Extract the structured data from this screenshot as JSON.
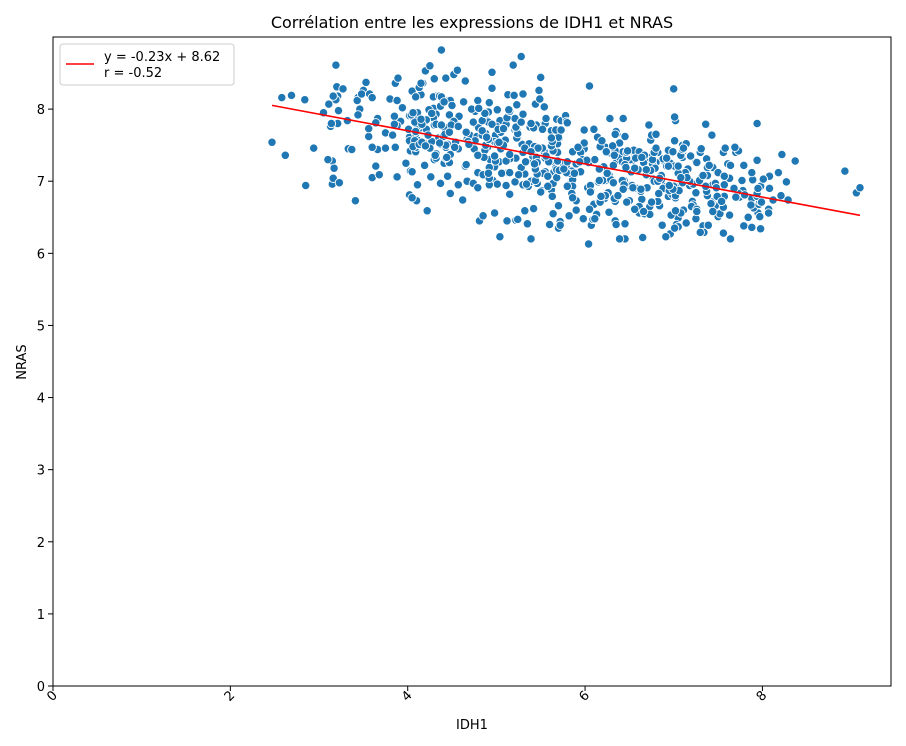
{
  "chart_data": {
    "type": "scatter",
    "title": "Corrélation entre les expressions de IDH1 et NRAS",
    "xlabel": "IDH1",
    "ylabel": "NRAS",
    "xlim": [
      0,
      9.45
    ],
    "ylim": [
      0,
      9.0
    ],
    "xticks": [
      0,
      2,
      4,
      6,
      8
    ],
    "yticks": [
      0,
      1,
      2,
      3,
      4,
      5,
      6,
      7,
      8
    ],
    "xtick_rotation": 45,
    "grid": false,
    "legend": {
      "placement": "top-left",
      "entries": [
        "y = -0.23x + 8.62",
        "r = -0.52"
      ]
    },
    "regression": {
      "slope": -0.23,
      "intercept": 8.62,
      "x_range": [
        2.47,
        9.1
      ],
      "color": "#ff0000",
      "label": "y = -0.23x + 8.62",
      "r_label": "r = -0.52"
    },
    "marker_color": "#1f77b4",
    "point_count": 700,
    "points": [
      [
        2.47,
        7.54
      ],
      [
        2.58,
        8.16
      ],
      [
        2.62,
        7.36
      ],
      [
        2.69,
        8.19
      ],
      [
        2.84,
        8.13
      ],
      [
        2.85,
        6.94
      ],
      [
        2.94,
        7.46
      ],
      [
        3.05,
        7.95
      ],
      [
        3.13,
        7.76
      ],
      [
        3.15,
        7.28
      ],
      [
        3.15,
        6.96
      ],
      [
        3.16,
        7.04
      ],
      [
        3.19,
        8.61
      ],
      [
        3.2,
        8.31
      ],
      [
        3.21,
        7.8
      ],
      [
        3.22,
        7.98
      ],
      [
        3.23,
        6.98
      ],
      [
        3.27,
        8.28
      ],
      [
        3.33,
        7.45
      ],
      [
        3.41,
        6.73
      ],
      [
        3.44,
        8.16
      ],
      [
        3.46,
        8.0
      ],
      [
        3.53,
        8.37
      ],
      [
        3.56,
        7.62
      ],
      [
        3.6,
        7.05
      ],
      [
        3.64,
        7.21
      ],
      [
        3.66,
        7.44
      ],
      [
        3.68,
        7.09
      ],
      [
        3.75,
        7.67
      ],
      [
        3.8,
        8.14
      ],
      [
        3.86,
        7.47
      ],
      [
        3.88,
        8.12
      ],
      [
        3.92,
        7.83
      ],
      [
        4.02,
        6.81
      ],
      [
        4.05,
        8.25
      ],
      [
        4.07,
        7.47
      ],
      [
        4.1,
        6.73
      ],
      [
        4.15,
        8.2
      ],
      [
        4.17,
        8.36
      ],
      [
        4.2,
        8.53
      ],
      [
        4.22,
        6.59
      ],
      [
        4.25,
        8.6
      ],
      [
        4.3,
        7.3
      ],
      [
        4.32,
        8.18
      ],
      [
        4.38,
        8.82
      ],
      [
        4.45,
        7.07
      ],
      [
        4.48,
        6.83
      ],
      [
        4.52,
        8.48
      ],
      [
        4.56,
        8.54
      ],
      [
        4.62,
        6.74
      ],
      [
        4.67,
        7.0
      ],
      [
        4.74,
        6.97
      ],
      [
        4.81,
        6.45
      ],
      [
        4.85,
        6.52
      ],
      [
        4.95,
        8.51
      ],
      [
        4.98,
        6.56
      ],
      [
        5.04,
        6.23
      ],
      [
        5.12,
        6.45
      ],
      [
        5.22,
        6.46
      ],
      [
        5.28,
        8.73
      ],
      [
        5.32,
        6.59
      ],
      [
        5.35,
        6.41
      ],
      [
        5.42,
        6.62
      ],
      [
        5.5,
        8.44
      ],
      [
        5.6,
        6.4
      ],
      [
        5.7,
        6.35
      ],
      [
        5.72,
        6.44
      ],
      [
        5.82,
        6.52
      ],
      [
        6.04,
        6.13
      ],
      [
        6.05,
        8.32
      ],
      [
        6.1,
        6.68
      ],
      [
        6.34,
        6.45
      ],
      [
        6.45,
        6.41
      ],
      [
        7.0,
        8.28
      ],
      [
        7.05,
        6.54
      ],
      [
        7.33,
        6.38
      ],
      [
        7.5,
        6.51
      ],
      [
        7.84,
        6.5
      ],
      [
        7.94,
        7.8
      ],
      [
        7.95,
        6.56
      ],
      [
        8.12,
        6.74
      ],
      [
        8.18,
        7.12
      ],
      [
        8.21,
        6.8
      ],
      [
        8.22,
        7.37
      ],
      [
        8.27,
        6.99
      ],
      [
        8.29,
        6.74
      ],
      [
        8.37,
        7.28
      ],
      [
        8.93,
        7.14
      ],
      [
        9.06,
        6.84
      ],
      [
        9.1,
        6.91
      ]
    ]
  }
}
